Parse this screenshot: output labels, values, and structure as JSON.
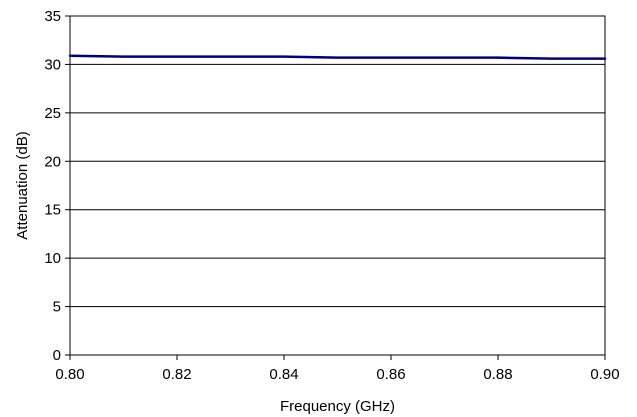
{
  "chart_data": {
    "type": "line",
    "title": "",
    "xlabel": "Frequency (GHz)",
    "ylabel": "Attenuation (dB)",
    "xlim": [
      0.8,
      0.9
    ],
    "ylim": [
      0,
      35
    ],
    "x_ticks": [
      "0.80",
      "0.82",
      "0.84",
      "0.86",
      "0.88",
      "0.90"
    ],
    "y_ticks": [
      "0",
      "5",
      "10",
      "15",
      "20",
      "25",
      "30",
      "35"
    ],
    "grid": "horizontal",
    "legend": "none",
    "series": [
      {
        "color": "#000080",
        "x": [
          0.8,
          0.81,
          0.82,
          0.83,
          0.84,
          0.85,
          0.86,
          0.87,
          0.88,
          0.89,
          0.9
        ],
        "y": [
          30.9,
          30.8,
          30.8,
          30.8,
          30.8,
          30.7,
          30.7,
          30.7,
          30.7,
          30.6,
          30.6
        ]
      }
    ]
  }
}
